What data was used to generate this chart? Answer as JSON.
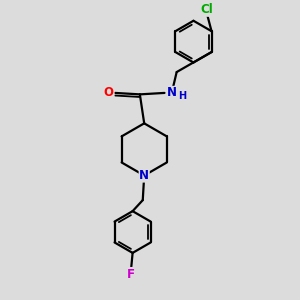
{
  "bg_color": "#dcdcdc",
  "bond_color": "#000000",
  "line_width": 1.6,
  "atom_colors": {
    "O": "#ff0000",
    "N_amide": "#0000cc",
    "N_pip": "#0000cc",
    "Cl": "#00aa00",
    "F": "#cc00cc",
    "H": "#0000cc"
  },
  "font_size_atom": 8.5,
  "fig_size": [
    3.0,
    3.0
  ],
  "dpi": 100
}
